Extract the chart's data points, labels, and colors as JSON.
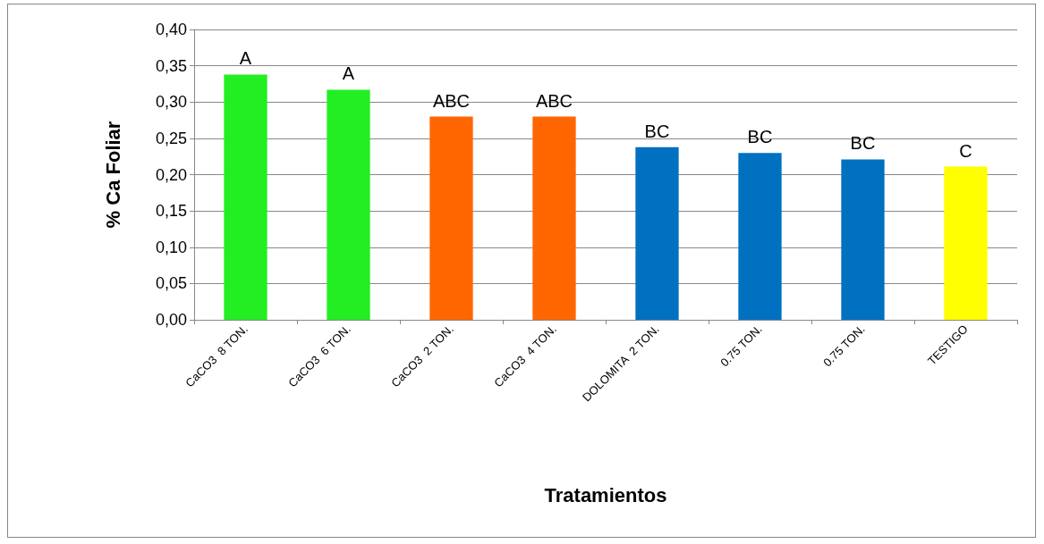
{
  "chart_data": {
    "type": "bar",
    "xlabel": "Tratamientos",
    "ylabel": "% Ca Foliar",
    "categories": [
      "CaCO3  8 TON.",
      "CaCO3  6 TON.",
      "CaCO3  2 TON.",
      "CaCO3  4 TON.",
      "DOLOMITA  2 TON.",
      "0.75 TON.",
      "0.75 TON.",
      "TESTIGO"
    ],
    "values": [
      0.338,
      0.317,
      0.28,
      0.28,
      0.238,
      0.23,
      0.221,
      0.211
    ],
    "colors": [
      "#22ee22",
      "#22ee22",
      "#ff6600",
      "#ff6600",
      "#0070c0",
      "#0070c0",
      "#0070c0",
      "#ffff00"
    ],
    "value_labels": [
      "A",
      "A",
      "ABC",
      "ABC",
      "BC",
      "BC",
      "BC",
      "C"
    ],
    "ylim": [
      0,
      0.4
    ],
    "yticks": [
      {
        "value": 0,
        "label": "0,00"
      },
      {
        "value": 0.05,
        "label": "0,05"
      },
      {
        "value": 0.1,
        "label": "0,10"
      },
      {
        "value": 0.15,
        "label": "0,15"
      },
      {
        "value": 0.2,
        "label": "0,20"
      },
      {
        "value": 0.25,
        "label": "0,25"
      },
      {
        "value": 0.3,
        "label": "0,30"
      },
      {
        "value": 0.35,
        "label": "0,35"
      },
      {
        "value": 0.4,
        "label": "0,40"
      }
    ],
    "grid": true
  }
}
